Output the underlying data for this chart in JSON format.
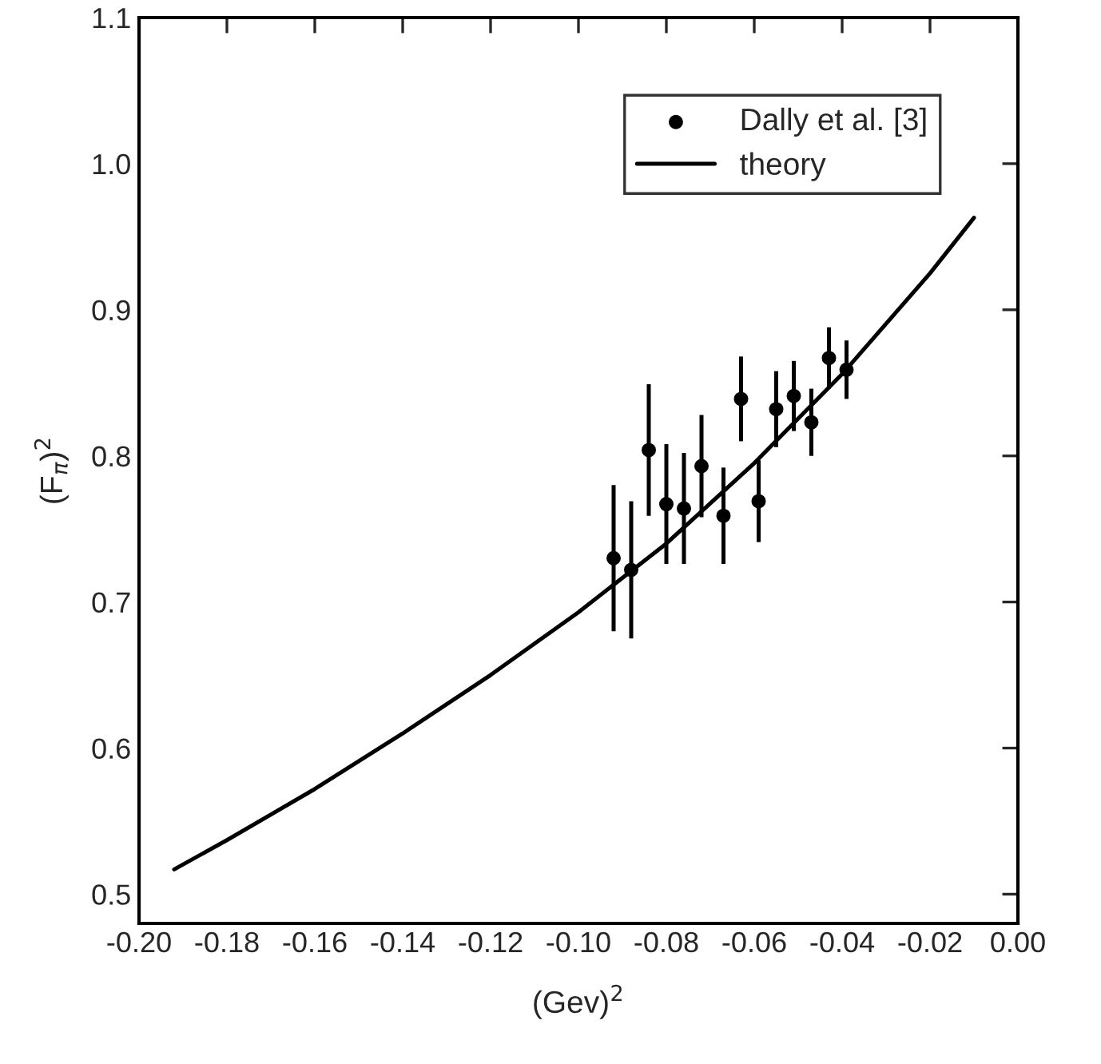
{
  "chart_data": {
    "type": "scatter",
    "xlabel": "(Gev)$^{2}$",
    "ylabel": "(F$_{π}$)$^{2}$",
    "xlim": [
      -0.2,
      0.0
    ],
    "xticks": [
      {
        "value": -0.2,
        "label": "-0.20"
      },
      {
        "value": -0.18,
        "label": "-0.18"
      },
      {
        "value": -0.16,
        "label": "-0.16"
      },
      {
        "value": -0.14,
        "label": "-0.14"
      },
      {
        "value": -0.12,
        "label": "-0.12"
      },
      {
        "value": -0.1,
        "label": "-0.10"
      },
      {
        "value": -0.08,
        "label": "-0.08"
      },
      {
        "value": -0.06,
        "label": "-0.06"
      },
      {
        "value": -0.04,
        "label": "-0.04"
      },
      {
        "value": -0.02,
        "label": "-0.02"
      },
      {
        "value": 0.0,
        "label": "0.00"
      }
    ],
    "ylim": [
      0.48,
      1.1
    ],
    "yticks": [
      0.5,
      0.6,
      0.7,
      0.8,
      0.9,
      {
        "value": 1.0,
        "label": "1.0"
      },
      1.1
    ],
    "legend": "top right",
    "grid": false,
    "series": [
      {
        "name": "Dally et al. [3]",
        "marker": "circle",
        "color": "#000000",
        "x": [
          -0.092,
          -0.088,
          -0.084,
          -0.08,
          -0.076,
          -0.072,
          -0.067,
          -0.063,
          -0.059,
          -0.055,
          -0.051,
          -0.047,
          -0.043,
          -0.039
        ],
        "values": [
          0.73,
          0.722,
          0.804,
          0.767,
          0.764,
          0.793,
          0.759,
          0.839,
          0.769,
          0.832,
          0.841,
          0.823,
          0.867,
          0.859
        ],
        "errors": [
          0.05,
          0.047,
          0.045,
          0.041,
          0.038,
          0.035,
          0.033,
          0.029,
          0.028,
          0.026,
          0.024,
          0.023,
          0.021,
          0.02
        ]
      },
      {
        "name": "theory",
        "type": "line",
        "marker": "none",
        "line_style": "solid",
        "color": "#000000",
        "x": [
          -0.192,
          -0.18,
          -0.16,
          -0.14,
          -0.12,
          -0.1,
          -0.08,
          -0.06,
          -0.04,
          -0.02,
          -0.01
        ],
        "values": [
          0.517,
          0.537,
          0.572,
          0.61,
          0.65,
          0.693,
          0.74,
          0.795,
          0.856,
          0.925,
          0.963
        ]
      }
    ]
  }
}
